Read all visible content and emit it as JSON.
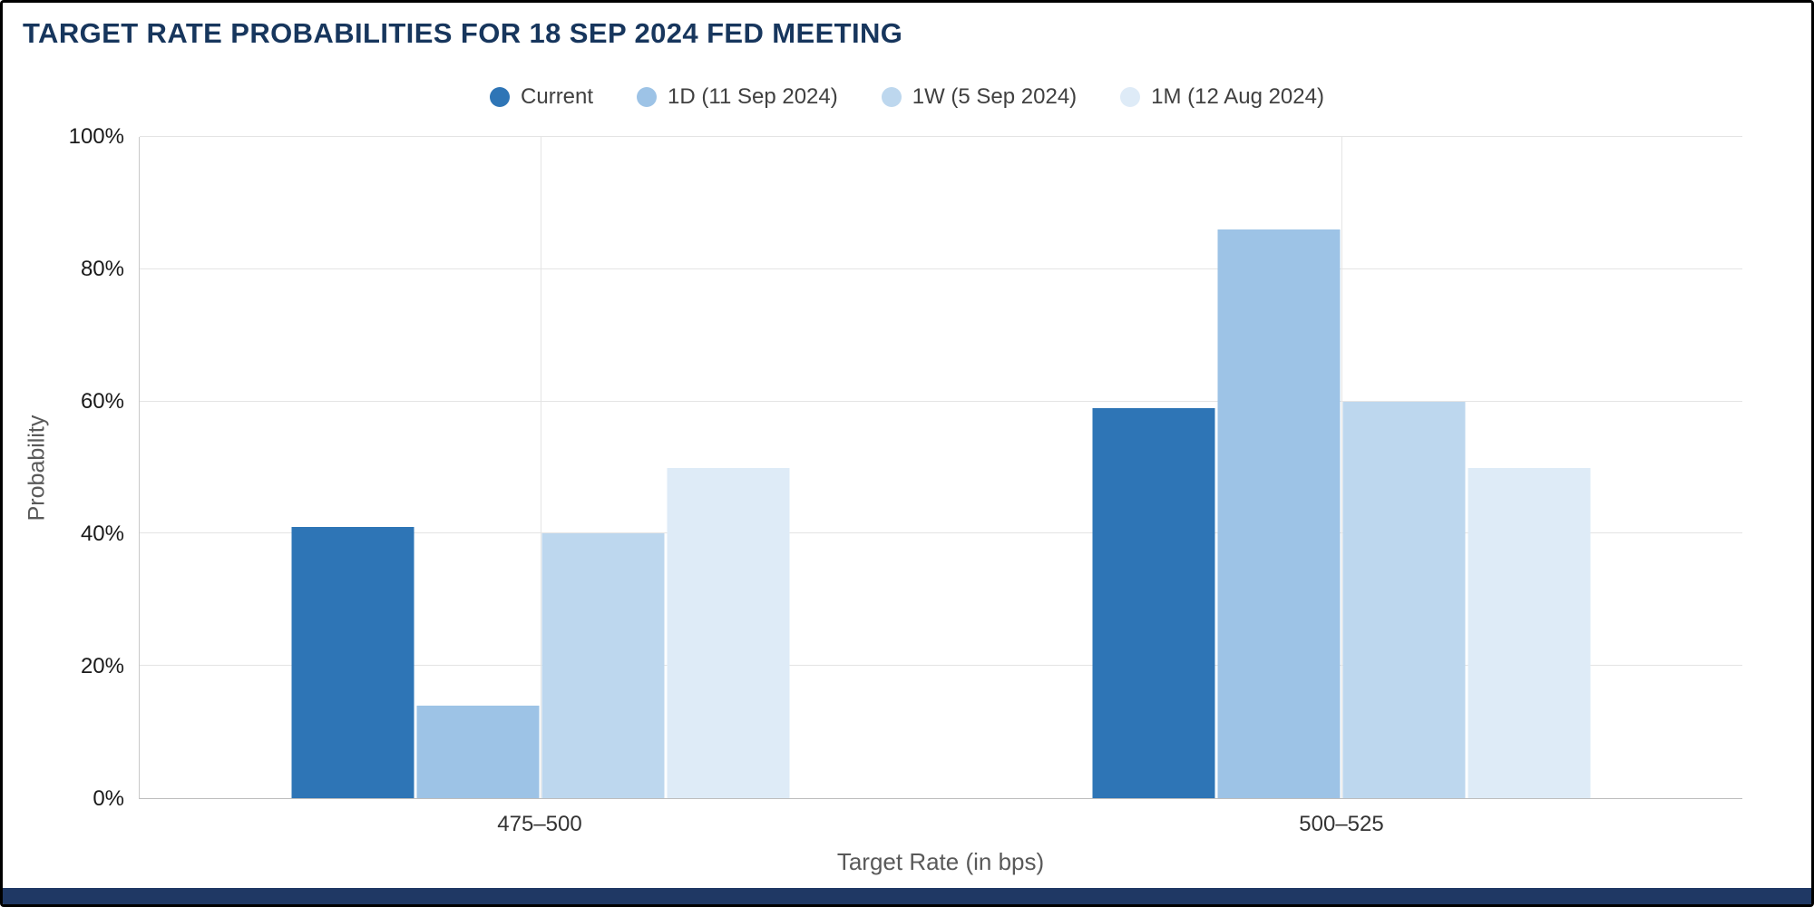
{
  "title": "TARGET RATE PROBABILITIES FOR 18 SEP 2024 FED MEETING",
  "chart_data": {
    "type": "bar",
    "title": "TARGET RATE PROBABILITIES FOR 18 SEP 2024 FED MEETING",
    "xlabel": "Target Rate (in bps)",
    "ylabel": "Probability",
    "ylim": [
      0,
      100
    ],
    "yticks": [
      "0%",
      "20%",
      "40%",
      "60%",
      "80%",
      "100%"
    ],
    "categories": [
      "475–500",
      "500–525"
    ],
    "series": [
      {
        "name": "Current",
        "color": "#2E75B6",
        "values": [
          41,
          59
        ]
      },
      {
        "name": "1D (11 Sep 2024)",
        "color": "#9DC3E6",
        "values": [
          14,
          86
        ]
      },
      {
        "name": "1W (5 Sep 2024)",
        "color": "#BDD7EE",
        "values": [
          40,
          60
        ]
      },
      {
        "name": "1M (12 Aug 2024)",
        "color": "#DEEBF7",
        "values": [
          50,
          50
        ]
      }
    ],
    "legend_position": "top",
    "grid": true,
    "colors": {
      "title": "#17365D",
      "axis_text": "#595959",
      "footer": "#1F3864"
    }
  }
}
